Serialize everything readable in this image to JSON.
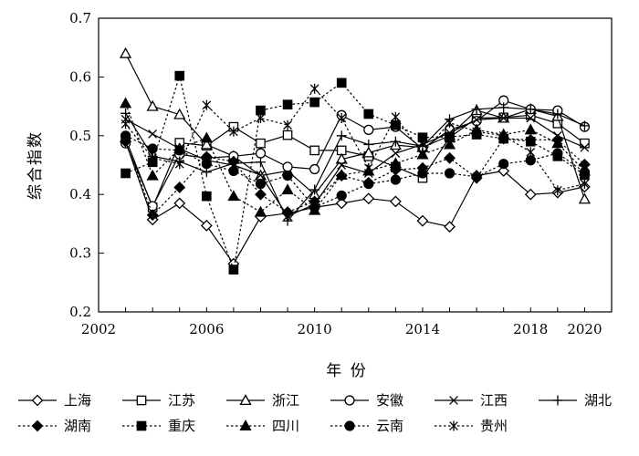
{
  "chart_data": {
    "type": "line",
    "title": "",
    "xlabel": "年 份",
    "ylabel": "综合指数",
    "xlim": [
      2002,
      2021
    ],
    "ylim": [
      0.2,
      0.7
    ],
    "xticks": [
      2002,
      2006,
      2010,
      2014,
      2018,
      2020
    ],
    "yticks": [
      0.2,
      0.3,
      0.4,
      0.5,
      0.6,
      0.7
    ],
    "grid": false,
    "legend_position": "bottom",
    "x": [
      2003,
      2004,
      2005,
      2006,
      2007,
      2008,
      2009,
      2010,
      2011,
      2012,
      2013,
      2014,
      2015,
      2016,
      2017,
      2018,
      2019,
      2020
    ],
    "series": [
      {
        "name": "上海",
        "marker": "diamond-open",
        "dash": "solid",
        "values": [
          0.49,
          0.357,
          0.385,
          0.347,
          0.282,
          0.362,
          0.368,
          0.378,
          0.385,
          0.393,
          0.388,
          0.355,
          0.345,
          0.432,
          0.44,
          0.4,
          0.403,
          0.413
        ]
      },
      {
        "name": "江苏",
        "marker": "square-open",
        "dash": "solid",
        "values": [
          0.495,
          0.378,
          0.488,
          0.483,
          0.515,
          0.487,
          0.501,
          0.475,
          0.475,
          0.465,
          0.447,
          0.428,
          0.497,
          0.53,
          0.531,
          0.535,
          0.521,
          0.487
        ]
      },
      {
        "name": "浙江",
        "marker": "triangle-open",
        "dash": "solid",
        "values": [
          0.64,
          0.55,
          0.536,
          0.485,
          0.465,
          0.432,
          0.44,
          0.4,
          0.46,
          0.471,
          0.484,
          0.48,
          0.5,
          0.543,
          0.53,
          0.545,
          0.533,
          0.392
        ]
      },
      {
        "name": "安徽",
        "marker": "circle-open",
        "dash": "solid",
        "values": [
          0.487,
          0.38,
          0.468,
          0.462,
          0.465,
          0.47,
          0.447,
          0.443,
          0.535,
          0.51,
          0.515,
          0.478,
          0.51,
          0.525,
          0.56,
          0.545,
          0.543,
          0.515
        ]
      },
      {
        "name": "江西",
        "marker": "x",
        "dash": "solid",
        "values": [
          0.528,
          0.503,
          0.478,
          0.458,
          0.45,
          0.433,
          0.363,
          0.383,
          0.45,
          0.436,
          0.47,
          0.485,
          0.505,
          0.527,
          0.53,
          0.53,
          0.5,
          0.48
        ]
      },
      {
        "name": "湖北",
        "marker": "plus",
        "dash": "solid",
        "values": [
          0.538,
          0.465,
          0.456,
          0.438,
          0.453,
          0.455,
          0.355,
          0.408,
          0.5,
          0.485,
          0.49,
          0.482,
          0.528,
          0.545,
          0.548,
          0.545,
          0.537,
          0.517
        ]
      },
      {
        "name": "湖南",
        "marker": "diamond-filled",
        "dash": "dotted",
        "values": [
          0.49,
          0.365,
          0.412,
          0.464,
          0.456,
          0.4,
          0.37,
          0.388,
          0.432,
          0.42,
          0.442,
          0.445,
          0.462,
          0.428,
          0.495,
          0.493,
          0.493,
          0.451
        ]
      },
      {
        "name": "重庆",
        "marker": "square-filled",
        "dash": "dotted",
        "values": [
          0.436,
          0.455,
          0.602,
          0.397,
          0.272,
          0.543,
          0.553,
          0.557,
          0.59,
          0.537,
          0.518,
          0.497,
          0.498,
          0.502,
          0.495,
          0.49,
          0.465,
          0.433
        ]
      },
      {
        "name": "四川",
        "marker": "triangle-filled",
        "dash": "dotted",
        "values": [
          0.555,
          0.432,
          0.478,
          0.496,
          0.397,
          0.37,
          0.408,
          0.373,
          0.433,
          0.44,
          0.453,
          0.468,
          0.485,
          0.51,
          0.502,
          0.51,
          0.487,
          0.44
        ]
      },
      {
        "name": "云南",
        "marker": "circle-filled",
        "dash": "dotted",
        "values": [
          0.5,
          0.478,
          0.475,
          0.452,
          0.44,
          0.418,
          0.432,
          0.378,
          0.398,
          0.418,
          0.425,
          0.436,
          0.436,
          0.43,
          0.452,
          0.458,
          0.47,
          0.438
        ]
      },
      {
        "name": "贵州",
        "marker": "star",
        "dash": "dotted",
        "values": [
          0.52,
          0.462,
          0.452,
          0.552,
          0.507,
          0.53,
          0.518,
          0.58,
          0.53,
          0.445,
          0.532,
          0.47,
          0.522,
          0.507,
          0.5,
          0.472,
          0.407,
          0.418
        ]
      }
    ]
  }
}
